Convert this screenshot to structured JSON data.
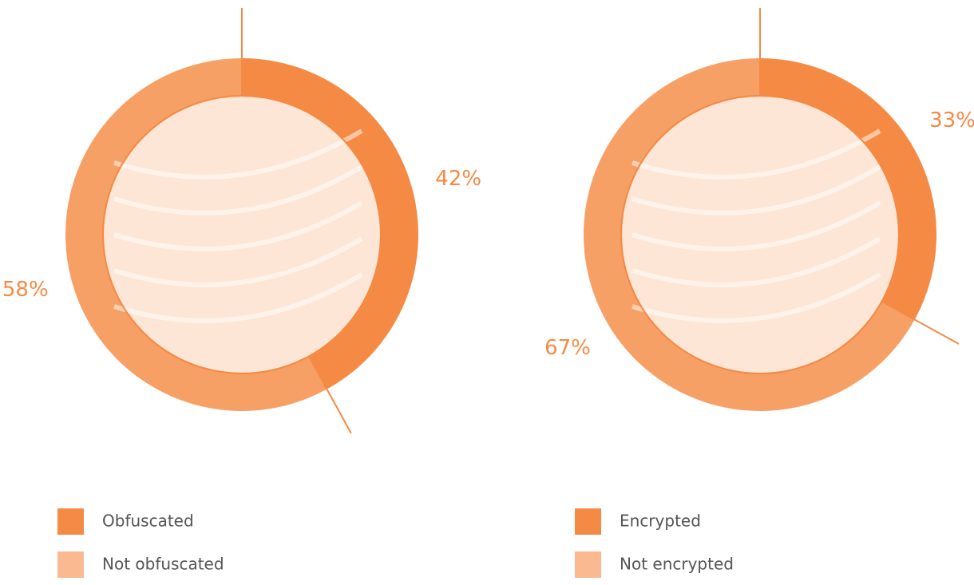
{
  "chart_data": [
    {
      "type": "donut",
      "categories": [
        "Obfuscated",
        "Not obfuscated"
      ],
      "values": [
        42,
        58
      ],
      "value_labels": [
        "42%",
        "58%"
      ],
      "colors": [
        "#f58a45",
        "#f7a066"
      ],
      "legend_colors": [
        "#f58a45",
        "#fbb992"
      ]
    },
    {
      "type": "donut",
      "categories": [
        "Encrypted",
        "Not encrypted"
      ],
      "values": [
        33,
        67
      ],
      "value_labels": [
        "33%",
        "67%"
      ],
      "colors": [
        "#f58a45",
        "#f7a066"
      ],
      "legend_colors": [
        "#f58a45",
        "#fbb992"
      ]
    }
  ]
}
